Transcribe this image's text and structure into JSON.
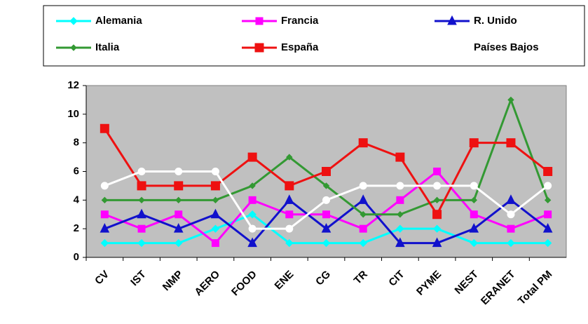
{
  "chart_data": {
    "type": "line",
    "categories": [
      "CV",
      "IST",
      "NMP",
      "AERO",
      "FOOD",
      "ENE",
      "CG",
      "TR",
      "CIT",
      "PYME",
      "NEST",
      "ERANET",
      "Total PM"
    ],
    "series": [
      {
        "name": "Alemania",
        "color": "#00ffff",
        "marker": "diamond",
        "values": [
          1,
          1,
          1,
          2,
          3,
          1,
          1,
          1,
          2,
          2,
          1,
          1,
          1
        ]
      },
      {
        "name": "Francia",
        "color": "#ff00ff",
        "marker": "square",
        "values": [
          3,
          2,
          3,
          1,
          4,
          3,
          3,
          2,
          4,
          6,
          3,
          2,
          3
        ]
      },
      {
        "name": "R. Unido",
        "color": "#1111cc",
        "marker": "triangle",
        "values": [
          2,
          3,
          2,
          3,
          1,
          4,
          2,
          4,
          1,
          1,
          2,
          4,
          2
        ]
      },
      {
        "name": "Italia",
        "color": "#339933",
        "marker": "small-diamond",
        "values": [
          4,
          4,
          4,
          4,
          5,
          7,
          5,
          3,
          3,
          4,
          4,
          11,
          4
        ]
      },
      {
        "name": "España",
        "color": "#ee1111",
        "marker": "big-square",
        "values": [
          9,
          5,
          5,
          5,
          7,
          5,
          6,
          8,
          7,
          3,
          8,
          8,
          6
        ]
      },
      {
        "name": "Países Bajos",
        "color": "#ffffff",
        "marker": "circle",
        "values": [
          5,
          6,
          6,
          6,
          2,
          2,
          4,
          5,
          5,
          5,
          5,
          3,
          5
        ]
      }
    ],
    "ylim": [
      0,
      12
    ],
    "yticks": [
      0,
      2,
      4,
      6,
      8,
      10,
      12
    ],
    "grid": false,
    "legend": "top"
  }
}
